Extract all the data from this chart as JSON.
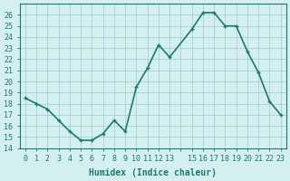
{
  "x": [
    0,
    1,
    2,
    3,
    4,
    5,
    6,
    7,
    8,
    9,
    10,
    11,
    12,
    13,
    15,
    16,
    17,
    18,
    19,
    20,
    21,
    22,
    23
  ],
  "y": [
    18.5,
    18.0,
    17.5,
    16.5,
    15.5,
    14.7,
    14.7,
    15.3,
    16.5,
    15.5,
    19.5,
    21.2,
    23.3,
    22.2,
    24.7,
    26.2,
    26.2,
    25.0,
    25.0,
    22.7,
    20.8,
    18.2,
    17.0
  ],
  "line_color": "#1a7a6e",
  "marker_color": "#1a7a6e",
  "bg_color": "#d4efef",
  "grid_color": "#a0cccc",
  "xlabel": "Humidex (Indice chaleur)",
  "ylim": [
    14,
    27
  ],
  "xlim": [
    -0.5,
    23.5
  ],
  "yticks": [
    14,
    15,
    16,
    17,
    18,
    19,
    20,
    21,
    22,
    23,
    24,
    25,
    26
  ],
  "xticks": [
    0,
    1,
    2,
    3,
    4,
    5,
    6,
    7,
    8,
    9,
    10,
    11,
    12,
    13,
    14,
    15,
    16,
    17,
    18,
    19,
    20,
    21,
    22,
    23
  ],
  "xtick_labels": [
    "0",
    "1",
    "2",
    "3",
    "4",
    "5",
    "6",
    "7",
    "8",
    "9",
    "10",
    "11",
    "12",
    "13",
    "",
    "15",
    "16",
    "17",
    "18",
    "19",
    "20",
    "21",
    "22",
    "23"
  ],
  "tick_color": "#1a7a6e",
  "label_fontsize": 7,
  "tick_fontsize": 6,
  "linewidth": 1.2,
  "markersize": 3.5
}
